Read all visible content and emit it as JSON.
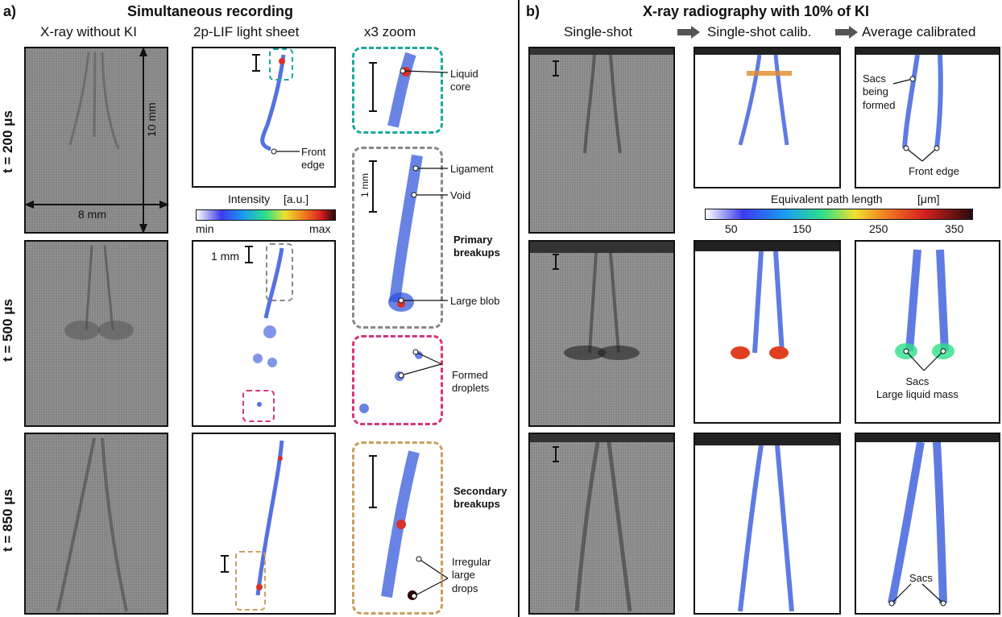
{
  "panel_a": {
    "letter": "a)",
    "title": "Simultaneous recording",
    "col_heads": [
      "X-ray without KI",
      "2p-LIF light sheet",
      "x3 zoom"
    ],
    "rows": [
      "t = 200 μs",
      "t = 500 μs",
      "t = 850 μs"
    ],
    "scale": {
      "vertical": "10 mm",
      "horizontal": "8 mm",
      "small": "1 mm"
    },
    "intensity": {
      "label": "Intensity",
      "unit": "[a.u.]",
      "min": "min",
      "max": "max"
    },
    "annotations": {
      "front_edge": "Front\nedge",
      "liquid_core": "Liquid\ncore",
      "ligament": "Ligament",
      "void": "Void",
      "primary": "Primary\nbreakups",
      "large_blob": "Large blob",
      "formed_droplets": "Formed\ndroplets",
      "secondary": "Secondary\nbreakups",
      "irregular": "Irregular\nlarge\ndrops"
    }
  },
  "panel_b": {
    "letter": "b)",
    "title": "X-ray radiography with 10% of KI",
    "col_heads": [
      "Single-shot",
      "Single-shot calib.",
      "Average calibrated"
    ],
    "colorbar": {
      "label": "Equivalent path length",
      "unit": "[μm]",
      "ticks": [
        "50",
        "150",
        "250",
        "350"
      ]
    },
    "annotations": {
      "sacs_formed": "Sacs\nbeing\nformed",
      "front_edge": "Front edge",
      "sacs_large": "Sacs\nLarge liquid mass",
      "sacs": "Sacs"
    }
  },
  "colors": {
    "teal": "#1aa89b",
    "gray": "#888888",
    "magenta": "#d6337c",
    "tan": "#c8a060",
    "spray_blue": "#2a4fd8"
  }
}
